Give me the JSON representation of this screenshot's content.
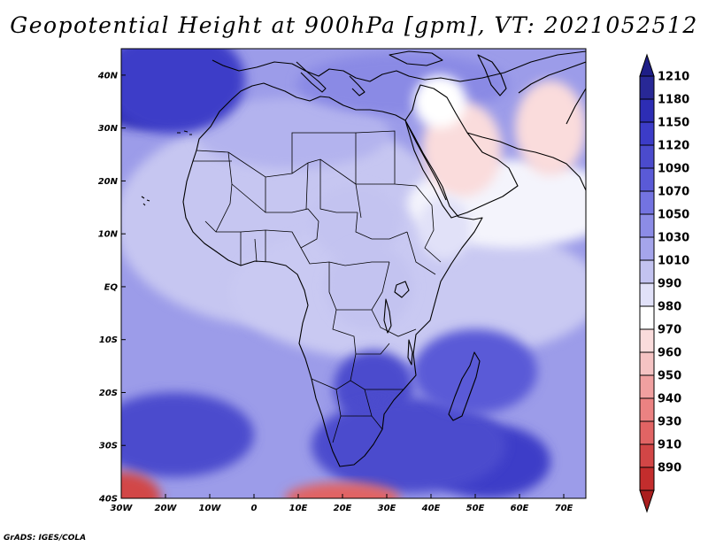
{
  "title": "Geopotential Height at 900hPa [gpm], VT: 2021052512",
  "credit": "GrADS: IGES/COLA",
  "map": {
    "projection": "latlon",
    "lon_range": [
      -30,
      75
    ],
    "lat_range": [
      -40,
      45
    ],
    "lat_ticks": [
      {
        "value": 40,
        "label": "40N"
      },
      {
        "value": 30,
        "label": "30N"
      },
      {
        "value": 20,
        "label": "20N"
      },
      {
        "value": 10,
        "label": "10N"
      },
      {
        "value": 0,
        "label": "EQ"
      },
      {
        "value": -10,
        "label": "10S"
      },
      {
        "value": -20,
        "label": "20S"
      },
      {
        "value": -30,
        "label": "30S"
      },
      {
        "value": -40,
        "label": "40S"
      }
    ],
    "lon_ticks": [
      {
        "value": -30,
        "label": "30W"
      },
      {
        "value": -20,
        "label": "20W"
      },
      {
        "value": -10,
        "label": "10W"
      },
      {
        "value": 0,
        "label": "0"
      },
      {
        "value": 10,
        "label": "10E"
      },
      {
        "value": 20,
        "label": "20E"
      },
      {
        "value": 30,
        "label": "30E"
      },
      {
        "value": 40,
        "label": "40E"
      },
      {
        "value": 50,
        "label": "50E"
      },
      {
        "value": 60,
        "label": "60E"
      },
      {
        "value": 70,
        "label": "70E"
      }
    ],
    "highs": [
      {
        "lon": -26,
        "lat": 37,
        "value": 1175,
        "rx": 12,
        "ry": 7
      },
      {
        "lon": -18,
        "lat": 39,
        "value": 1130,
        "rx": 16,
        "ry": 10
      },
      {
        "lon": 53,
        "lat": -33,
        "value": 1135,
        "rx": 14,
        "ry": 7
      },
      {
        "lon": 27,
        "lat": -19,
        "value": 1115,
        "rx": 9,
        "ry": 7
      },
      {
        "lon": -18,
        "lat": -28,
        "value": 1095,
        "rx": 18,
        "ry": 8
      },
      {
        "lon": 35,
        "lat": -30,
        "value": 1095,
        "rx": 22,
        "ry": 9
      },
      {
        "lon": 50,
        "lat": -16,
        "value": 1080,
        "rx": 14,
        "ry": 8
      }
    ],
    "lows": [
      {
        "lon": 47,
        "lat": 26,
        "value": 965,
        "rx": 9,
        "ry": 9
      },
      {
        "lon": 67,
        "lat": 30,
        "value": 960,
        "rx": 8,
        "ry": 9
      },
      {
        "lon": 42,
        "lat": 35,
        "value": 975,
        "rx": 6,
        "ry": 5
      },
      {
        "lon": 43,
        "lat": 11,
        "value": 980,
        "rx": 6,
        "ry": 6
      },
      {
        "lon": 23,
        "lat": 12,
        "value": 995,
        "rx": 10,
        "ry": 7
      },
      {
        "lon": 26,
        "lat": 0,
        "value": 1005,
        "rx": 10,
        "ry": 8
      },
      {
        "lon": -30,
        "lat": -40,
        "value": 895,
        "rx": 9,
        "ry": 5
      },
      {
        "lon": 20,
        "lat": -40,
        "value": 920,
        "rx": 13,
        "ry": 3
      }
    ]
  },
  "colorbar": {
    "levels": [
      {
        "label": "1210",
        "color": "#282896"
      },
      {
        "label": "1180",
        "color": "#2d2db4"
      },
      {
        "label": "1150",
        "color": "#3c3cc8"
      },
      {
        "label": "1120",
        "color": "#4b4bcd"
      },
      {
        "label": "1090",
        "color": "#5a5ad7"
      },
      {
        "label": "1070",
        "color": "#7373e1"
      },
      {
        "label": "1050",
        "color": "#8c8ce6"
      },
      {
        "label": "1030",
        "color": "#a5a5eb"
      },
      {
        "label": "1010",
        "color": "#c3c3f0"
      },
      {
        "label": "990",
        "color": "#e1e1f8"
      },
      {
        "label": "980",
        "color": "#ffffff"
      },
      {
        "label": "970",
        "color": "#fadcdc"
      },
      {
        "label": "960",
        "color": "#f5c3c3"
      },
      {
        "label": "950",
        "color": "#f0a0a0"
      },
      {
        "label": "940",
        "color": "#eb8282"
      },
      {
        "label": "930",
        "color": "#e16464"
      },
      {
        "label": "910",
        "color": "#d24646"
      },
      {
        "label": "890",
        "color": "#c32d2d"
      }
    ],
    "top_color": "#1e1e87",
    "bottom_color": "#aa1e1e"
  }
}
